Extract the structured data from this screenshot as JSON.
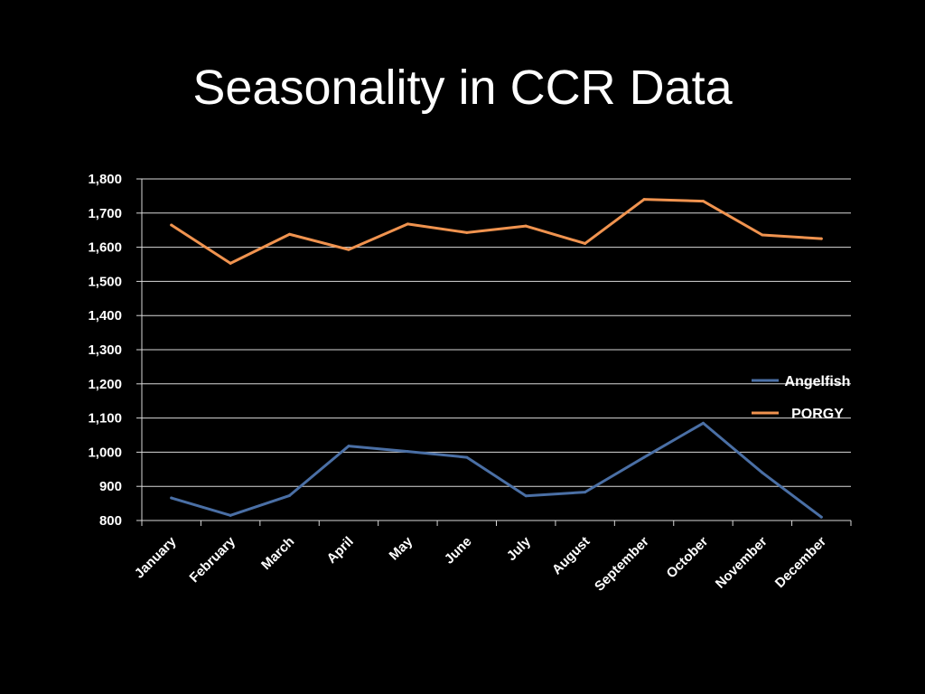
{
  "slide": {
    "title": "Seasonality in CCR Data"
  },
  "chart_data": {
    "type": "line",
    "title": "Seasonality in CCR Data",
    "xlabel": "",
    "ylabel": "",
    "categories": [
      "January",
      "February",
      "March",
      "April",
      "May",
      "June",
      "July",
      "August",
      "September",
      "October",
      "November",
      "December"
    ],
    "ylim": [
      800,
      1800
    ],
    "yticks": [
      "800",
      "900",
      "1,000",
      "1,100",
      "1,200",
      "1,300",
      "1,400",
      "1,500",
      "1,600",
      "1,700",
      "1,800"
    ],
    "grid": true,
    "legend_position": "right",
    "series": [
      {
        "name": "Angelfish",
        "color": "#4a6fa5",
        "values": [
          866,
          815,
          873,
          1018,
          1002,
          985,
          872,
          883,
          985,
          1085,
          940,
          810
        ]
      },
      {
        "name": "PORGY",
        "color": "#f0934f",
        "values": [
          1665,
          1553,
          1638,
          1593,
          1668,
          1643,
          1662,
          1611,
          1740,
          1735,
          1636,
          1625
        ]
      }
    ]
  }
}
